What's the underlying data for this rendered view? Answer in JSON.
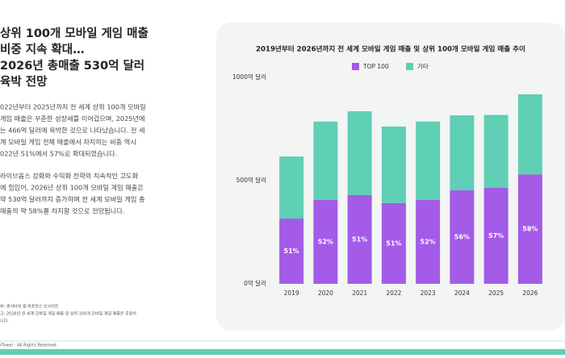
{
  "header": {
    "title_lines": [
      "상위 100개 모바일 게임 매출",
      "비중 지속 확대…",
      "2026년 총매출 530억 달러",
      "육박 전망"
    ]
  },
  "body": {
    "paragraphs": [
      [
        "022년부터 2025년까지 전 세계 상위 100개 모바일",
        "게임 매출은 꾸준한 성장세를 이어갔으며, 2025년에",
        "는 466억 달러에 육박한 것으로 나타났습니다. 전 세",
        "계 모바일 게임 전체 매출에서 차지하는 비중 역시",
        "022년 51%에서 57%로 확대되었습니다."
      ],
      [
        "라이브옵스 강화와 수익화 전략의 지속적인 고도화",
        "에 힘입어, 2026년 상위 100개 모바일 게임 매출은",
        "약 530억 달러까지 증가하며 전 세계 모바일 게임 총",
        "매출의 약 58%를 차지할 것으로 전망됩니다."
      ]
    ]
  },
  "notes": [
    "처: 센서타워 앱 퍼포먼스 인사이트",
    "고: 2026년 전 세계 모바일 게임 매출 및 상위 100개 모바일 게임 매출은 추정치",
    "니다."
  ],
  "footer": "rTower · All Rights Reserved",
  "chart_data": {
    "type": "stacked-bar",
    "title": "2019년부터 2026년까지 전 세계 모바일 게임 매출 및 상위 100개 모바일 게임 매출 추이",
    "categories": [
      "2019",
      "2020",
      "2021",
      "2022",
      "2023",
      "2024",
      "2025",
      "2026"
    ],
    "series": [
      {
        "name": "TOP 100",
        "color": "#a35be8",
        "values": [
          316,
          406,
          430,
          391,
          406,
          453,
          466,
          530
        ]
      },
      {
        "name": "기타",
        "color": "#5fcfb5",
        "values": [
          301,
          380,
          406,
          371,
          380,
          363,
          352,
          388
        ]
      }
    ],
    "top100_share": {
      "values": [
        51,
        52,
        51,
        51,
        52,
        56,
        57,
        58
      ],
      "value_labels": [
        "51%",
        "52%",
        "51%",
        "51%",
        "52%",
        "56%",
        "57%",
        "58%"
      ]
    },
    "ylim": [
      0,
      1000
    ],
    "yticks": [
      {
        "value": 0,
        "label": "0억 달러"
      },
      {
        "value": 500,
        "label": "500억 달러"
      },
      {
        "value": 1000,
        "label": "1000억 달러"
      }
    ],
    "grid": false,
    "legend": "top"
  }
}
